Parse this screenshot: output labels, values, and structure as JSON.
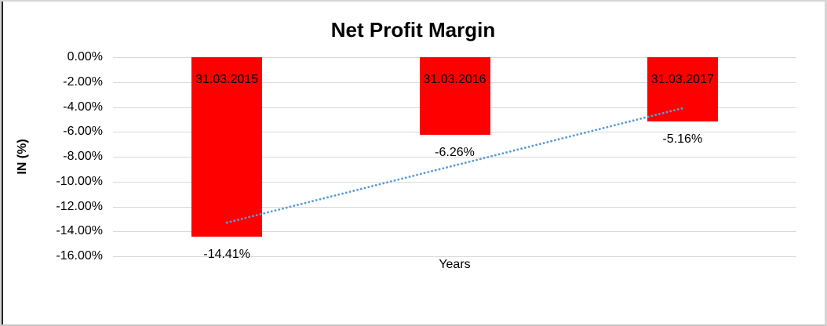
{
  "chart_data": {
    "type": "bar",
    "title": "Net Profit Margin",
    "xlabel": "Years",
    "ylabel": "IN (%)",
    "categories": [
      "31.03.2015",
      "31.03.2016",
      "31.03.2017"
    ],
    "values": [
      -14.41,
      -6.26,
      -5.16
    ],
    "data_labels": [
      "-14.41%",
      "-6.26%",
      "-5.16%"
    ],
    "ylim": [
      -16,
      0
    ],
    "ytick_step": 2,
    "ytick_labels": [
      "0.00%",
      "-2.00%",
      "-4.00%",
      "-6.00%",
      "-8.00%",
      "-10.00%",
      "-12.00%",
      "-14.00%",
      "-16.00%"
    ],
    "grid": true,
    "legend_position": "none",
    "bar_color": "#ff0000",
    "gridline_color": "#d9d9d9",
    "trendline": {
      "type": "linear",
      "style": "dotted",
      "color": "#5b9bd5",
      "start_value": -13.3,
      "end_value": -4.1
    }
  }
}
